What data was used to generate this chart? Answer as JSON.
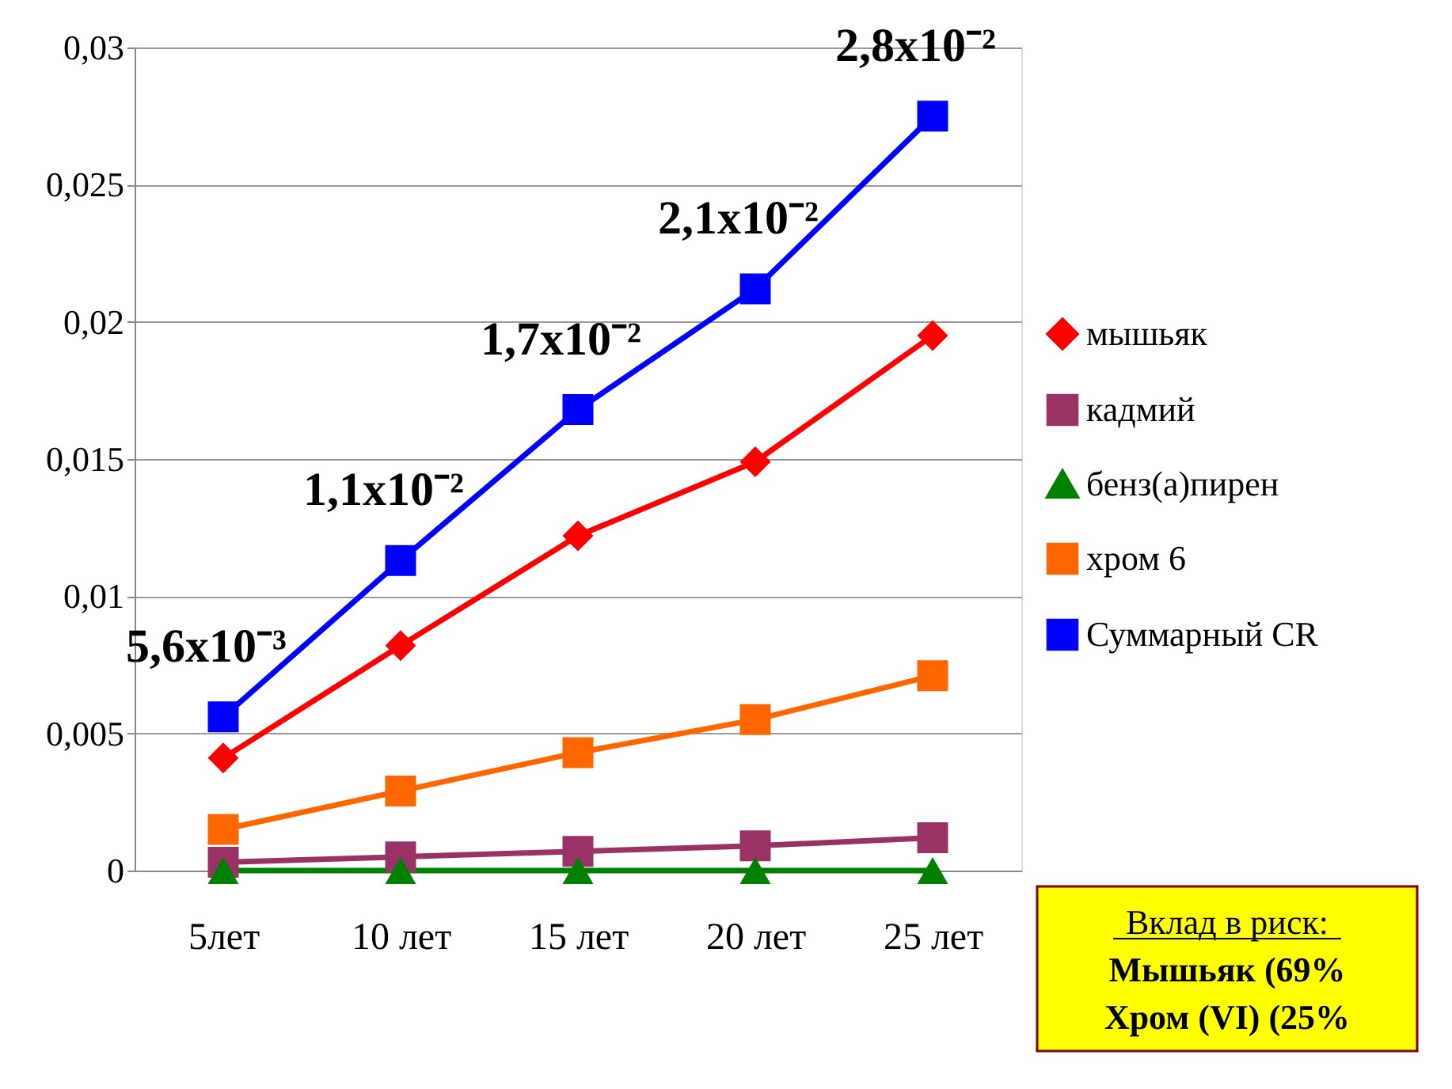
{
  "chart_data": {
    "type": "line",
    "categories": [
      "5лет",
      "10 лет",
      "15 лет",
      "20 лет",
      "25 лет"
    ],
    "series": [
      {
        "name": "мышьяк",
        "color": "#ff0000",
        "marker": "diamond",
        "values": [
          0.0041,
          0.0082,
          0.0122,
          0.0149,
          0.0195
        ]
      },
      {
        "name": "кадмий",
        "color": "#993366",
        "marker": "square",
        "values": [
          0.0003,
          0.0005,
          0.0007,
          0.0009,
          0.0012
        ]
      },
      {
        "name": "бенз(а)пирен",
        "color": "#008000",
        "marker": "triangle",
        "values": [
          0,
          0,
          0,
          0,
          0
        ]
      },
      {
        "name": "хром 6",
        "color": "#ff6600",
        "marker": "square",
        "values": [
          0.0015,
          0.0029,
          0.0043,
          0.0055,
          0.0071
        ]
      },
      {
        "name": "Суммарный CR",
        "color": "#0000ff",
        "marker": "square",
        "values": [
          0.0056,
          0.0113,
          0.0168,
          0.0212,
          0.0275
        ]
      }
    ],
    "ylim": [
      0,
      0.03
    ],
    "yticks": [
      0,
      {
        "value": 0.005,
        "label": "0,005"
      },
      {
        "value": 0.01,
        "label": "0,01"
      },
      {
        "value": 0.015,
        "label": "0,015"
      },
      {
        "value": 0.02,
        "label": "0,02"
      },
      {
        "value": 0.025,
        "label": "0,025"
      },
      {
        "value": 0.03,
        "label": "0,03"
      }
    ],
    "grid": "y",
    "legend": "right",
    "line_style": "solid",
    "annotations": [
      {
        "text": "5,6x10⁻³",
        "x": "5лет",
        "y": 0.0056
      },
      {
        "text": "1,1x10⁻²",
        "x": "10 лет",
        "y": 0.0113
      },
      {
        "text": "1,7x10⁻²",
        "x": "15 лет",
        "y": 0.0168
      },
      {
        "text": "2,1x10⁻²",
        "x": "20 лет",
        "y": 0.0212
      },
      {
        "text": "2,8x10⁻²",
        "x": "25 лет",
        "y": 0.0275
      },
      "Вклад в риск:",
      "Мышьяк (69%",
      "Хром (VI) (25%"
    ]
  }
}
